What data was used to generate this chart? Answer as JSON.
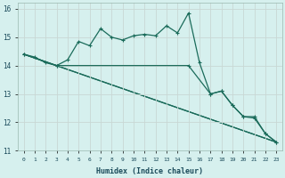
{
  "xlabel": "Humidex (Indice chaleur)",
  "ylabel": "",
  "xlim": [
    -0.5,
    23.5
  ],
  "ylim": [
    11,
    16.2
  ],
  "xticks": [
    0,
    1,
    2,
    3,
    4,
    5,
    6,
    7,
    8,
    9,
    10,
    11,
    12,
    13,
    14,
    15,
    16,
    17,
    18,
    19,
    20,
    21,
    22,
    23
  ],
  "yticks": [
    11,
    12,
    13,
    14,
    15,
    16
  ],
  "bg_color": "#d6f0ee",
  "grid_color": "#c8d8d4",
  "line_color": "#1a6b5a",
  "series1_x": [
    0,
    1,
    2,
    3,
    4,
    5,
    6,
    7,
    8,
    9,
    10,
    11,
    12,
    13,
    14,
    15,
    16,
    17,
    18,
    19,
    20,
    21,
    22,
    23
  ],
  "series1_y": [
    14.4,
    14.3,
    14.1,
    14.0,
    14.2,
    14.85,
    14.7,
    15.3,
    15.0,
    14.9,
    15.05,
    15.1,
    15.05,
    15.4,
    15.15,
    15.85,
    14.1,
    13.0,
    13.1,
    12.6,
    12.2,
    12.15,
    11.6,
    11.3
  ],
  "series2_x": [
    0,
    3,
    15,
    17,
    18,
    19,
    20,
    21,
    22,
    23
  ],
  "series2_y": [
    14.4,
    14.0,
    14.0,
    13.0,
    13.1,
    12.6,
    12.2,
    12.2,
    11.6,
    11.3
  ],
  "series3_x": [
    0,
    23
  ],
  "series3_y": [
    14.4,
    11.3
  ],
  "series4_x": [
    0,
    3,
    23
  ],
  "series4_y": [
    14.4,
    14.0,
    11.3
  ],
  "marker_size": 2.5,
  "line_width": 0.9
}
